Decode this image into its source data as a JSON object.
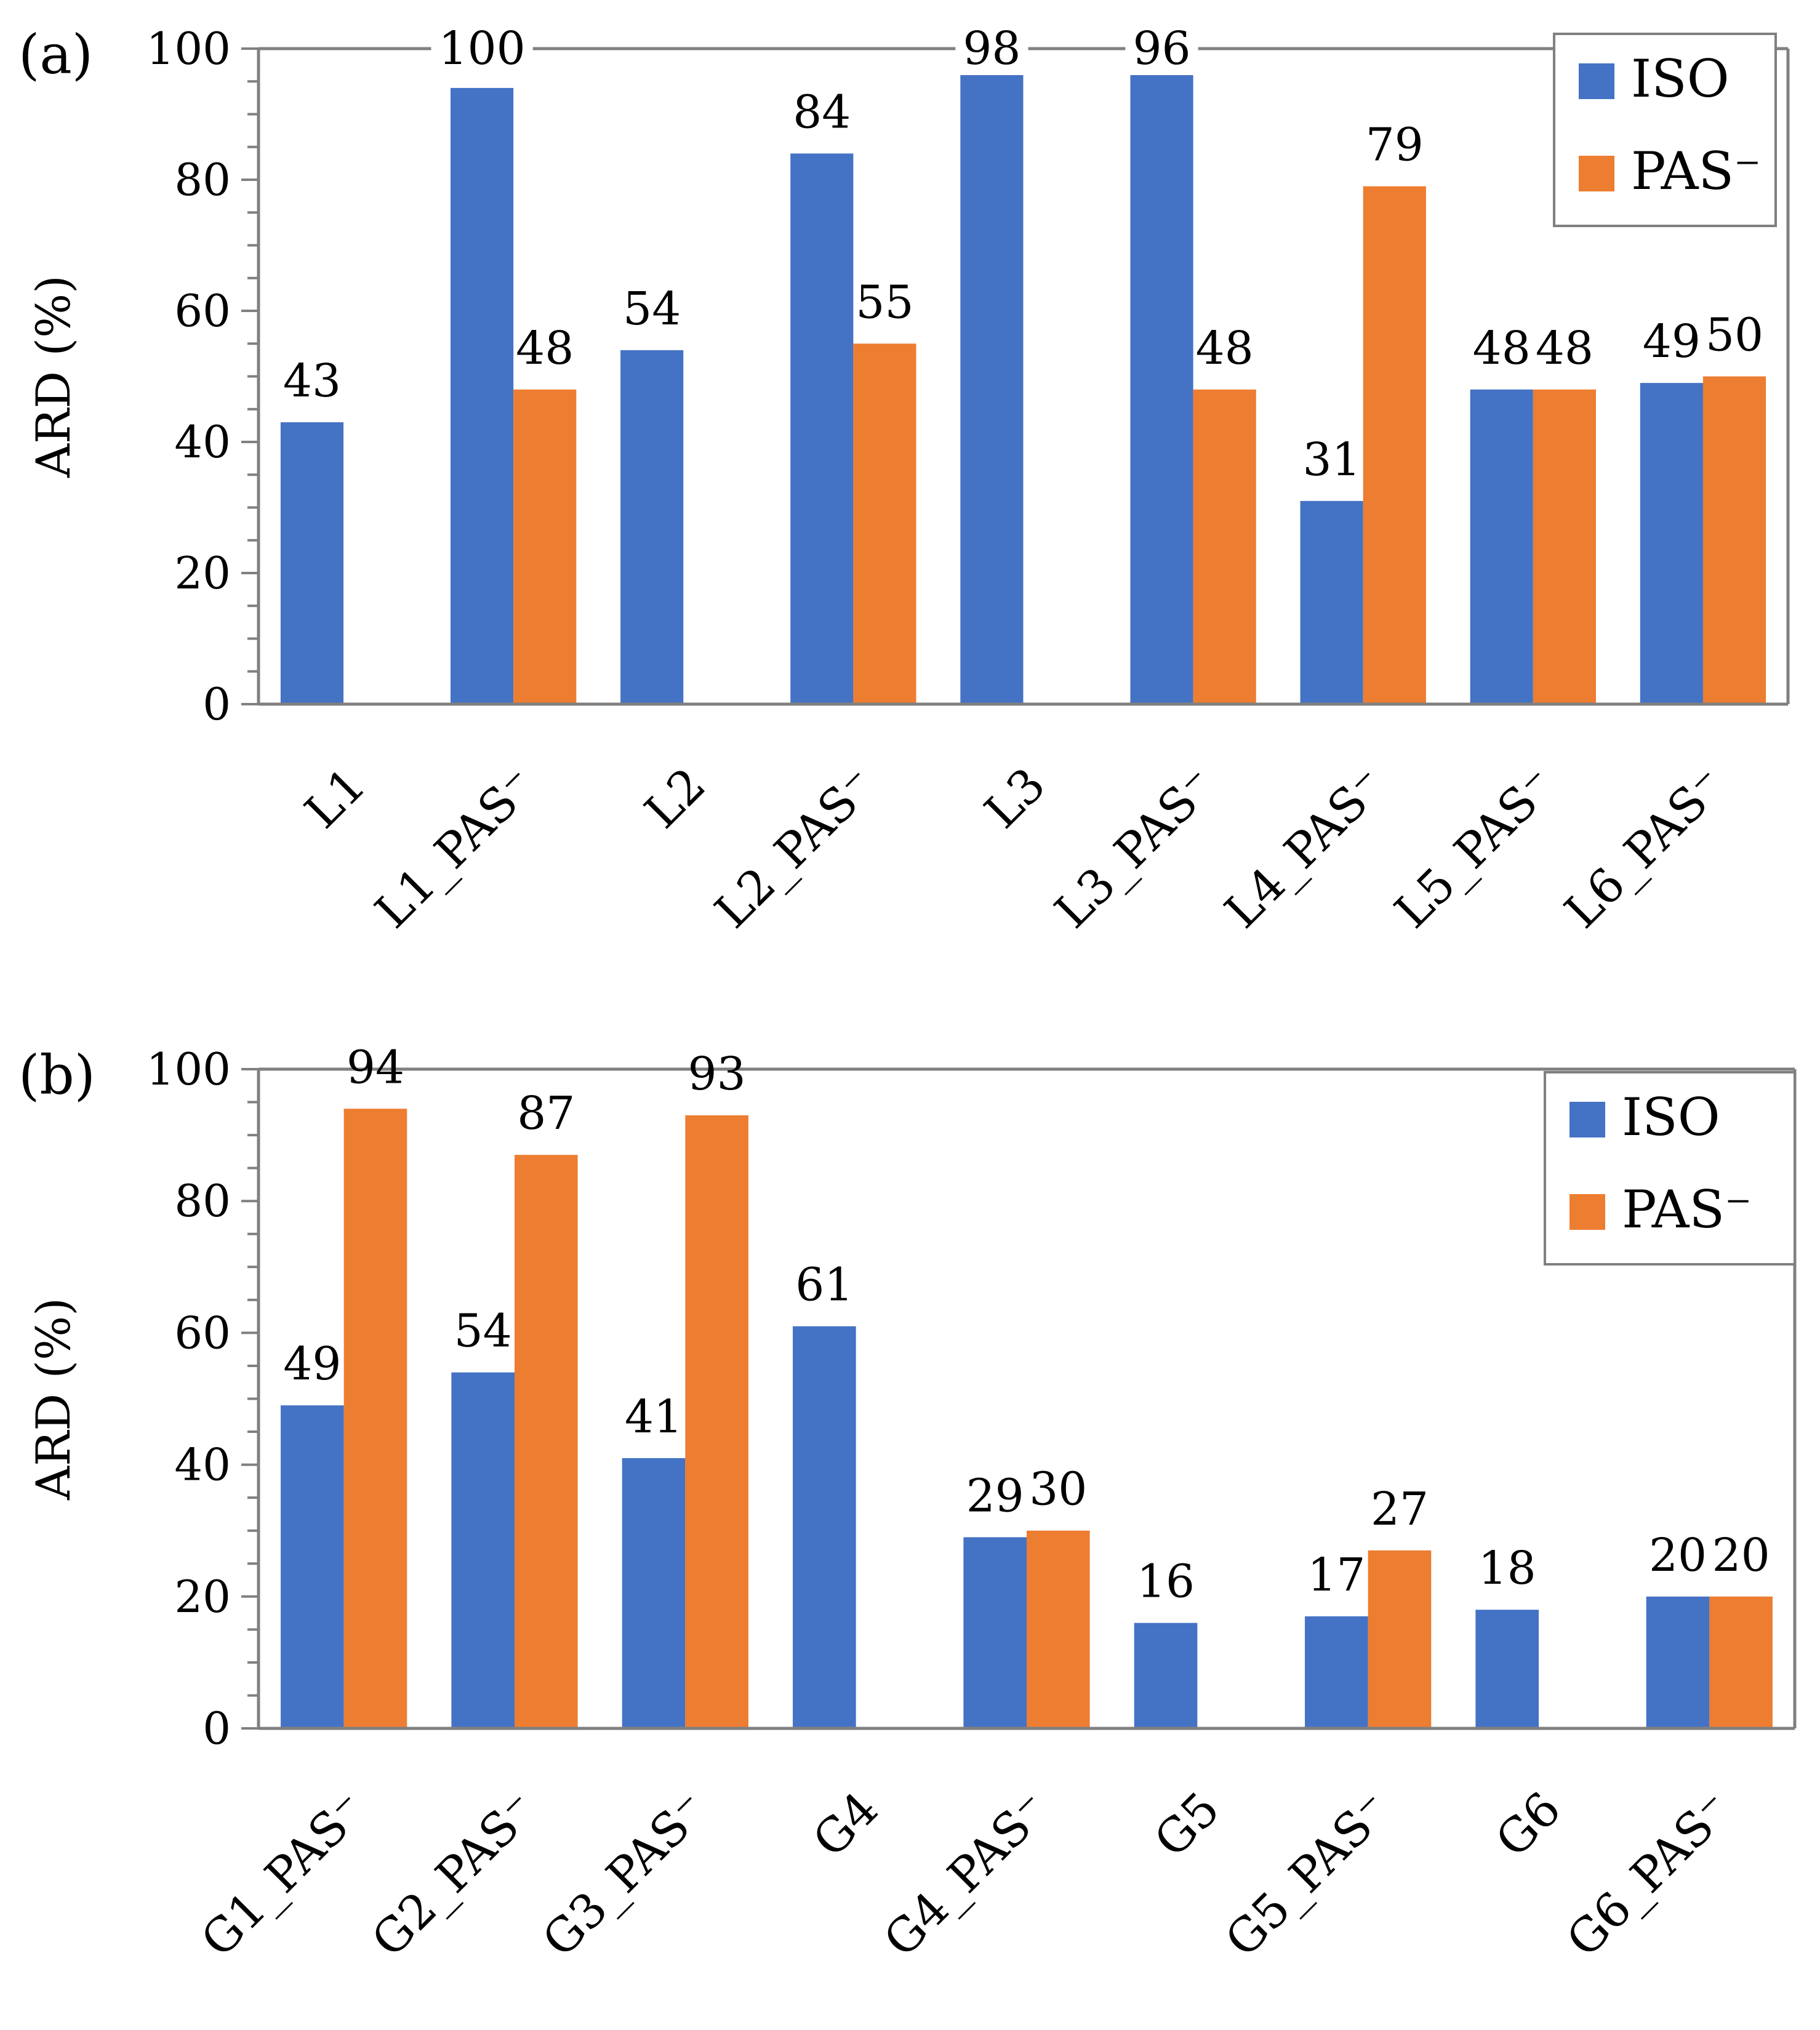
{
  "colors": {
    "iso": "#4472C4",
    "pas": "#ED7D31",
    "axis": "#808080"
  },
  "chart_data": [
    {
      "type": "bar",
      "panel_label": "(a)",
      "ylabel": "ARD (%)",
      "ylim": [
        0,
        100
      ],
      "y_ticks": [
        0,
        20,
        40,
        60,
        80,
        100
      ],
      "legend": {
        "position": "top-right",
        "entries": [
          "ISO",
          "PAS⁻"
        ]
      },
      "categories": [
        "L1",
        "L1_PAS⁻",
        "L2",
        "L2_PAS⁻",
        "L3",
        "L3_PAS⁻",
        "L4_PAS⁻",
        "L5_PAS⁻",
        "L6_PAS⁻"
      ],
      "series": [
        {
          "name": "ISO",
          "color_key": "iso",
          "values": [
            43,
            100,
            54,
            84,
            98,
            96,
            31,
            48,
            49
          ]
        },
        {
          "name": "PAS⁻",
          "color_key": "pas",
          "values": [
            null,
            48,
            null,
            55,
            null,
            48,
            79,
            48,
            50
          ]
        }
      ]
    },
    {
      "type": "bar",
      "panel_label": "(b)",
      "ylabel": "ARD (%)",
      "ylim": [
        0,
        100
      ],
      "y_ticks": [
        0,
        20,
        40,
        60,
        80,
        100
      ],
      "legend": {
        "position": "top-right",
        "entries": [
          "ISO",
          "PAS⁻"
        ]
      },
      "categories": [
        "G1_PAS⁻",
        "G2_PAS⁻",
        "G3_PAS⁻",
        "G4",
        "G4_PAS⁻",
        "G5",
        "G5_PAS⁻",
        "G6",
        "G6_PAS⁻"
      ],
      "series": [
        {
          "name": "ISO",
          "color_key": "iso",
          "values": [
            49,
            54,
            41,
            61,
            29,
            16,
            17,
            18,
            20
          ]
        },
        {
          "name": "PAS⁻",
          "color_key": "pas",
          "values": [
            94,
            87,
            93,
            null,
            30,
            null,
            27,
            null,
            20
          ]
        }
      ]
    }
  ]
}
